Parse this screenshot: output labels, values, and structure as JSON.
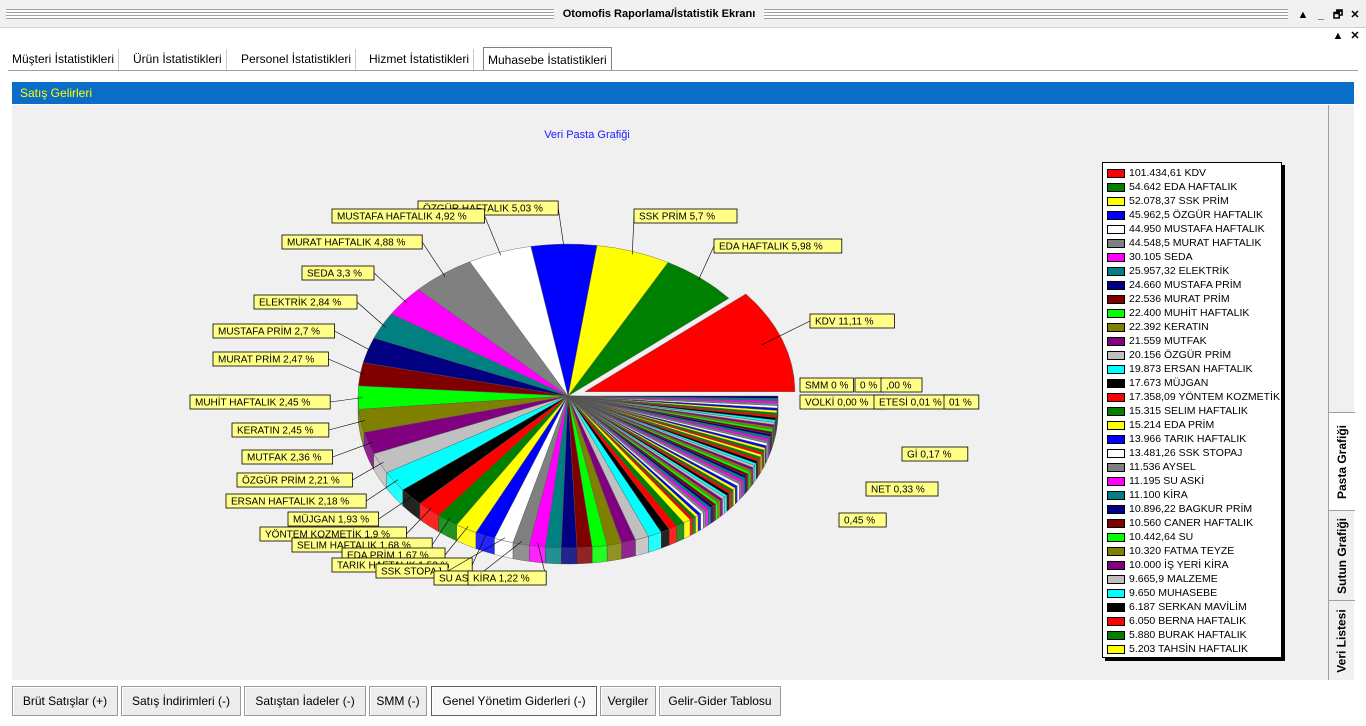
{
  "window": {
    "title": "Otomofis Raporlama/İstatistik Ekranı",
    "controls": {
      "up": "▲",
      "minimize": "_",
      "restore": "🗗",
      "close": "✕",
      "close2": "✕",
      "up2": "▲"
    }
  },
  "tabs": [
    {
      "label": "Müşteri İstatistikleri"
    },
    {
      "label": "Ürün İstatistikleri"
    },
    {
      "label": "Personel İstatistikleri"
    },
    {
      "label": "Hizmet İstatistikleri"
    },
    {
      "label": "Muhasebe İstatistikleri"
    }
  ],
  "panel": {
    "title": "Satış Gelirleri"
  },
  "side_tabs": [
    {
      "label": "Pasta Grafiği"
    },
    {
      "label": "Sutun Grafiği"
    },
    {
      "label": "Veri Listesi"
    }
  ],
  "bottom_buttons": [
    {
      "label": "Brüt Satışlar (+)"
    },
    {
      "label": "Satış İndirimleri (-)"
    },
    {
      "label": "Satıştan İadeler (-)"
    },
    {
      "label": "SMM (-)"
    },
    {
      "label": "Genel Yönetim Giderleri (-)"
    },
    {
      "label": "Vergiler"
    },
    {
      "label": "Gelir-Gider Tablosu"
    }
  ],
  "colors": {
    "panel_bg": "#0a6ec9",
    "panel_title": "#ffff00",
    "chart_title": "#1a1aff",
    "label_bg": "#ffff88"
  },
  "chart_data": {
    "type": "pie",
    "title": "Veri Pasta Grafiği",
    "legend_position": "right",
    "exploded": [
      "KDV"
    ],
    "legend": [
      {
        "value": "101.434,61",
        "name": "KDV",
        "color": "#ff0000"
      },
      {
        "value": "54.642",
        "name": "EDA HAFTALIK",
        "color": "#008000"
      },
      {
        "value": "52.078,37",
        "name": "SSK PRİM",
        "color": "#ffff00"
      },
      {
        "value": "45.962,5",
        "name": "ÖZGÜR HAFTALIK",
        "color": "#0000ff"
      },
      {
        "value": "44.950",
        "name": "MUSTAFA HAFTALIK",
        "color": "#ffffff"
      },
      {
        "value": "44.548,5",
        "name": "MURAT HAFTALIK",
        "color": "#808080"
      },
      {
        "value": "30.105",
        "name": "SEDA",
        "color": "#ff00ff"
      },
      {
        "value": "25.957,32",
        "name": "ELEKTRİK",
        "color": "#008080"
      },
      {
        "value": "24.660",
        "name": "MUSTAFA PRİM",
        "color": "#000080"
      },
      {
        "value": "22.536",
        "name": "MURAT PRİM",
        "color": "#800000"
      },
      {
        "value": "22.400",
        "name": "MUHİT HAFTALIK",
        "color": "#00ff00"
      },
      {
        "value": "22.392",
        "name": "KERATIN",
        "color": "#808000"
      },
      {
        "value": "21.559",
        "name": "MUTFAK",
        "color": "#800080"
      },
      {
        "value": "20.156",
        "name": "ÖZGÜR PRİM",
        "color": "#c0c0c0"
      },
      {
        "value": "19.873",
        "name": "ERSAN HAFTALIK",
        "color": "#00ffff"
      },
      {
        "value": "17.673",
        "name": "MÜJGAN",
        "color": "#000000"
      },
      {
        "value": "17.358,09",
        "name": "YÖNTEM KOZMETİK",
        "color": "#ff0000"
      },
      {
        "value": "15.315",
        "name": "SELIM HAFTALIK",
        "color": "#008000"
      },
      {
        "value": "15.214",
        "name": "EDA PRİM",
        "color": "#ffff00"
      },
      {
        "value": "13.966",
        "name": "TARIK HAFTALIK",
        "color": "#0000ff"
      },
      {
        "value": "13.481,26",
        "name": "SSK STOPAJ",
        "color": "#ffffff"
      },
      {
        "value": "11.536",
        "name": "AYSEL",
        "color": "#808080"
      },
      {
        "value": "11.195",
        "name": "SU ASKİ",
        "color": "#ff00ff"
      },
      {
        "value": "11.100",
        "name": "KİRA",
        "color": "#008080"
      },
      {
        "value": "10.896,22",
        "name": "BAGKUR PRİM",
        "color": "#000080"
      },
      {
        "value": "10.560",
        "name": "CANER HAFTALIK",
        "color": "#800000"
      },
      {
        "value": "10.442,64",
        "name": "SU",
        "color": "#00ff00"
      },
      {
        "value": "10.320",
        "name": "FATMA TEYZE",
        "color": "#808000"
      },
      {
        "value": "10.000",
        "name": "İŞ YERİ KİRA",
        "color": "#800080"
      },
      {
        "value": "9.665,9",
        "name": "MALZEME",
        "color": "#c0c0c0"
      },
      {
        "value": "9.650",
        "name": "MUHASEBE",
        "color": "#00ffff"
      },
      {
        "value": "6.187",
        "name": "SERKAN MAVİLİM",
        "color": "#000000"
      },
      {
        "value": "6.050",
        "name": "BERNA HAFTALIK",
        "color": "#ff0000"
      },
      {
        "value": "5.880",
        "name": "BURAK HAFTALIK",
        "color": "#008000"
      },
      {
        "value": "5.203",
        "name": "TAHSİN HAFTALIK",
        "color": "#ffff00"
      }
    ],
    "slice_labels": [
      {
        "text": "KDV  11,11 %"
      },
      {
        "text": "EDA HAFTALIK 5,98 %"
      },
      {
        "text": "SSK PRİM  5,7 %"
      },
      {
        "text": "ÖZGÜR HAFTALIK 5,03 %"
      },
      {
        "text": "MUSTAFA HAFTALIK 4,92 %"
      },
      {
        "text": "MURAT HAFTALIK 4,88 %"
      },
      {
        "text": "SEDA 3,3 %"
      },
      {
        "text": "ELEKTRİK 2,84 %"
      },
      {
        "text": "MUSTAFA PRİM 2,7 %"
      },
      {
        "text": "MURAT PRİM 2,47 %"
      },
      {
        "text": "MUHİT HAFTALIK 2,45 %"
      },
      {
        "text": "KERATIN 2,45 %"
      },
      {
        "text": "MUTFAK 2,36 %"
      },
      {
        "text": "ÖZGÜR PRİM 2,21 %"
      },
      {
        "text": "ERSAN HAFTALIK 2,18 %"
      },
      {
        "text": "MÜJGAN 1,93 %"
      },
      {
        "text": "YÖNTEM KOZMETİK  1,9 %"
      },
      {
        "text": "SELIM HAFTALIK 1,68 %"
      },
      {
        "text": "EDA PRİM 1,67 %"
      },
      {
        "text": "TARIK HAFTALIK 1,53 %"
      },
      {
        "text": "SSK STOPAJ"
      },
      {
        "text": "SU AS"
      },
      {
        "text": "KİRA 1,22 %"
      },
      {
        "text": "SMM 0 %"
      },
      {
        "text": "0 %"
      },
      {
        "text": ",00 %"
      },
      {
        "text": "VOLKİ 0,00 %"
      },
      {
        "text": "ETESİ 0,01 %"
      },
      {
        "text": "01 %"
      },
      {
        "text": "Gİ 0,17 %"
      },
      {
        "text": "NET 0,33 %"
      },
      {
        "text": "0,45 %"
      }
    ]
  }
}
